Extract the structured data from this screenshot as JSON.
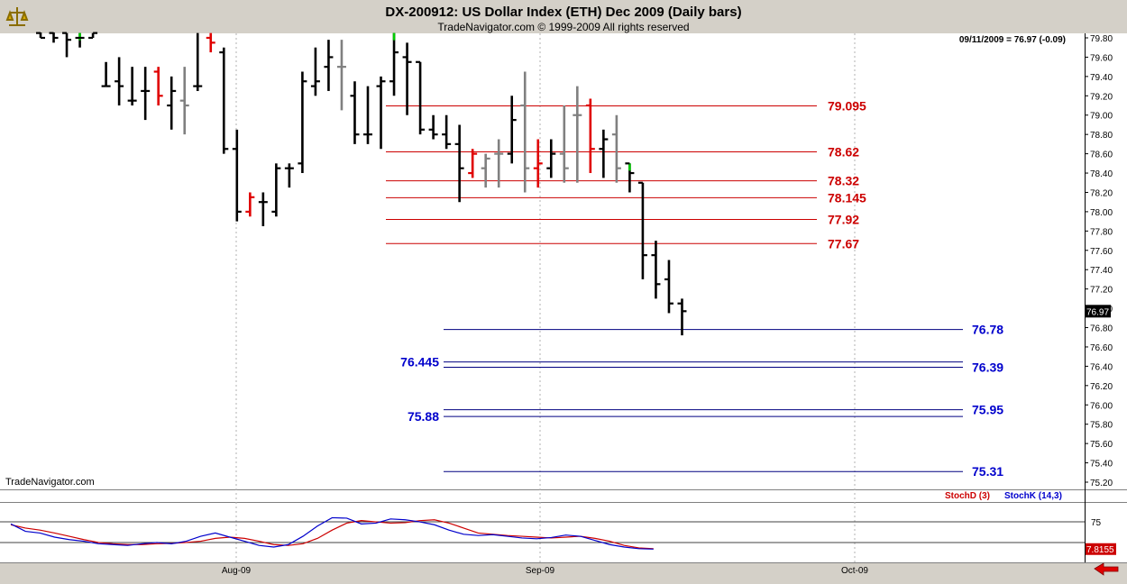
{
  "header": {
    "title": "DX-200912:  US Dollar Index (ETH) Dec 2009  (Daily bars)",
    "copyright": "TradeNavigator.com © 1999-2009 All rights reserved",
    "quote": "09/11/2009 = 76.97 (-0.09)",
    "watermark": "TradeNavigator.com",
    "logo_icon": "trading-scale-icon"
  },
  "colors": {
    "up_bar": "#000000",
    "down_bar": "#e00000",
    "neutral_bar": "#808080",
    "green_mark": "#00cc00",
    "resistance_line": "#cc0000",
    "support_line": "#000080",
    "support_label": "#0000cc",
    "stoch_d": "#cc0000",
    "stoch_k": "#0000cc"
  },
  "chart_data": [
    {
      "type": "ohlc",
      "title": "DX-200912:  US Dollar Index (ETH) Dec 2009  (Daily bars)",
      "ylim": [
        75.2,
        79.85
      ],
      "y_ticks": [
        "79.80",
        "79.60",
        "79.40",
        "79.20",
        "79.00",
        "78.80",
        "78.60",
        "78.40",
        "78.20",
        "78.00",
        "77.80",
        "77.60",
        "77.40",
        "77.20",
        "77.00",
        "76.80",
        "76.60",
        "76.40",
        "76.20",
        "76.00",
        "75.80",
        "75.60",
        "75.40",
        "75.20"
      ],
      "x_labels": [
        "Aug-09",
        "Sep-09",
        "Oct-09"
      ],
      "last_price_label": "76.97",
      "bars": [
        {
          "o": 79.85,
          "h": 79.9,
          "l": 79.8,
          "c": 79.8,
          "col": "k"
        },
        {
          "o": 79.85,
          "h": 79.9,
          "l": 79.75,
          "c": 79.8,
          "col": "k"
        },
        {
          "o": 79.85,
          "h": 79.85,
          "l": 79.6,
          "c": 79.78,
          "col": "k"
        },
        {
          "o": 79.8,
          "h": 79.85,
          "l": 79.7,
          "c": 79.8,
          "col": "g"
        },
        {
          "o": 79.8,
          "h": 79.85,
          "l": 79.8,
          "c": 79.85,
          "col": "k"
        },
        {
          "o": 79.3,
          "h": 79.55,
          "l": 79.3,
          "c": 79.3,
          "col": "k"
        },
        {
          "o": 79.35,
          "h": 79.6,
          "l": 79.1,
          "c": 79.3,
          "col": "k"
        },
        {
          "o": 79.15,
          "h": 79.5,
          "l": 79.1,
          "c": 79.15,
          "col": "k"
        },
        {
          "o": 79.25,
          "h": 79.5,
          "l": 78.95,
          "c": 79.25,
          "col": "k"
        },
        {
          "o": 79.45,
          "h": 79.5,
          "l": 79.1,
          "c": 79.2,
          "col": "r"
        },
        {
          "o": 79.1,
          "h": 79.4,
          "l": 78.85,
          "c": 79.25,
          "col": "k"
        },
        {
          "o": 79.15,
          "h": 79.5,
          "l": 78.8,
          "c": 79.1,
          "col": "n"
        },
        {
          "o": 79.3,
          "h": 79.85,
          "l": 79.25,
          "c": 79.3,
          "col": "k"
        },
        {
          "o": 79.8,
          "h": 79.85,
          "l": 79.65,
          "c": 79.75,
          "col": "r"
        },
        {
          "o": 79.65,
          "h": 79.7,
          "l": 78.6,
          "c": 78.65,
          "col": "k"
        },
        {
          "o": 78.65,
          "h": 78.85,
          "l": 77.9,
          "c": 78.0,
          "col": "k"
        },
        {
          "o": 78.0,
          "h": 78.2,
          "l": 77.95,
          "c": 78.15,
          "col": "r"
        },
        {
          "o": 78.1,
          "h": 78.2,
          "l": 77.85,
          "c": 78.1,
          "col": "k"
        },
        {
          "o": 78.0,
          "h": 78.5,
          "l": 77.95,
          "c": 78.45,
          "col": "k"
        },
        {
          "o": 78.45,
          "h": 78.5,
          "l": 78.25,
          "c": 78.45,
          "col": "k"
        },
        {
          "o": 78.5,
          "h": 79.45,
          "l": 78.4,
          "c": 79.35,
          "col": "k"
        },
        {
          "o": 79.3,
          "h": 79.7,
          "l": 79.2,
          "c": 79.35,
          "col": "k"
        },
        {
          "o": 79.5,
          "h": 79.78,
          "l": 79.25,
          "c": 79.6,
          "col": "k"
        },
        {
          "o": 79.5,
          "h": 79.78,
          "l": 79.05,
          "c": 79.5,
          "col": "n"
        },
        {
          "o": 79.2,
          "h": 79.35,
          "l": 78.7,
          "c": 78.8,
          "col": "k"
        },
        {
          "o": 78.8,
          "h": 79.3,
          "l": 78.7,
          "c": 78.8,
          "col": "k"
        },
        {
          "o": 79.3,
          "h": 79.4,
          "l": 78.65,
          "c": 79.35,
          "col": "k"
        },
        {
          "o": 79.35,
          "h": 79.85,
          "l": 79.2,
          "c": 79.65,
          "col": "g"
        },
        {
          "o": 79.6,
          "h": 79.75,
          "l": 79.0,
          "c": 79.55,
          "col": "k"
        },
        {
          "o": 79.55,
          "h": 79.55,
          "l": 78.8,
          "c": 78.85,
          "col": "k"
        },
        {
          "o": 78.85,
          "h": 79.0,
          "l": 78.75,
          "c": 78.8,
          "col": "k"
        },
        {
          "o": 78.8,
          "h": 79.0,
          "l": 78.65,
          "c": 78.7,
          "col": "k"
        },
        {
          "o": 78.7,
          "h": 78.9,
          "l": 78.1,
          "c": 78.45,
          "col": "k"
        },
        {
          "o": 78.4,
          "h": 78.65,
          "l": 78.35,
          "c": 78.6,
          "col": "r"
        },
        {
          "o": 78.45,
          "h": 78.6,
          "l": 78.25,
          "c": 78.55,
          "col": "n"
        },
        {
          "o": 78.6,
          "h": 78.75,
          "l": 78.25,
          "c": 78.6,
          "col": "n"
        },
        {
          "o": 78.6,
          "h": 79.2,
          "l": 78.5,
          "c": 78.95,
          "col": "k"
        },
        {
          "o": 79.1,
          "h": 79.45,
          "l": 78.2,
          "c": 78.45,
          "col": "n"
        },
        {
          "o": 78.45,
          "h": 78.75,
          "l": 78.25,
          "c": 78.5,
          "col": "r"
        },
        {
          "o": 78.45,
          "h": 78.75,
          "l": 78.35,
          "c": 78.6,
          "col": "k"
        },
        {
          "o": 78.6,
          "h": 79.1,
          "l": 78.3,
          "c": 78.45,
          "col": "n"
        },
        {
          "o": 79.0,
          "h": 79.3,
          "l": 78.3,
          "c": 79.0,
          "col": "n"
        },
        {
          "o": 79.1,
          "h": 79.17,
          "l": 78.4,
          "c": 78.65,
          "col": "r"
        },
        {
          "o": 78.65,
          "h": 78.85,
          "l": 78.35,
          "c": 78.75,
          "col": "k"
        },
        {
          "o": 78.8,
          "h": 79.0,
          "l": 78.3,
          "c": 78.45,
          "col": "n"
        },
        {
          "o": 78.5,
          "h": 78.5,
          "l": 78.2,
          "c": 78.4,
          "col": "g"
        },
        {
          "o": 78.3,
          "h": 78.3,
          "l": 77.3,
          "c": 77.55,
          "col": "k"
        },
        {
          "o": 77.55,
          "h": 77.7,
          "l": 77.1,
          "c": 77.25,
          "col": "k"
        },
        {
          "o": 77.3,
          "h": 77.5,
          "l": 76.95,
          "c": 77.05,
          "col": "k"
        },
        {
          "o": 77.05,
          "h": 77.1,
          "l": 76.72,
          "c": 76.97,
          "col": "k"
        }
      ],
      "resistance_levels": [
        {
          "value": 79.095,
          "label": "79.095"
        },
        {
          "value": 78.62,
          "label": "78.62"
        },
        {
          "value": 78.32,
          "label": "78.32"
        },
        {
          "value": 78.145,
          "label": "78.145"
        },
        {
          "value": 77.92,
          "label": "77.92"
        },
        {
          "value": 77.67,
          "label": "77.67"
        }
      ],
      "support_levels": [
        {
          "value": 76.78,
          "label": "76.78"
        },
        {
          "value": 76.445,
          "label": "76.445"
        },
        {
          "value": 76.39,
          "label": "76.39"
        },
        {
          "value": 75.95,
          "label": "75.95"
        },
        {
          "value": 75.88,
          "label": "75.88"
        },
        {
          "value": 75.31,
          "label": "75.31"
        }
      ]
    },
    {
      "type": "line",
      "ylim": [
        -10,
        110
      ],
      "y_ticks": [
        "75"
      ],
      "last_value_label": "7.8155",
      "series": [
        {
          "name": "StochD (3)",
          "color": "#cc0000",
          "values": [
            68,
            60,
            55,
            48,
            40,
            32,
            25,
            22,
            20,
            20,
            22,
            23,
            25,
            28,
            35,
            38,
            35,
            28,
            20,
            18,
            22,
            35,
            55,
            72,
            78,
            75,
            72,
            73,
            78,
            80,
            72,
            60,
            48,
            45,
            42,
            40,
            38,
            36,
            38,
            40,
            35,
            28,
            18,
            12,
            10
          ]
        },
        {
          "name": "StochK (14,3)",
          "color": "#0000cc",
          "values": [
            70,
            52,
            48,
            38,
            32,
            28,
            22,
            20,
            18,
            22,
            25,
            22,
            28,
            40,
            48,
            38,
            28,
            18,
            14,
            20,
            40,
            65,
            85,
            84,
            70,
            72,
            82,
            80,
            75,
            68,
            55,
            45,
            42,
            44,
            40,
            36,
            34,
            37,
            43,
            40,
            30,
            20,
            14,
            10,
            9
          ]
        }
      ]
    }
  ]
}
